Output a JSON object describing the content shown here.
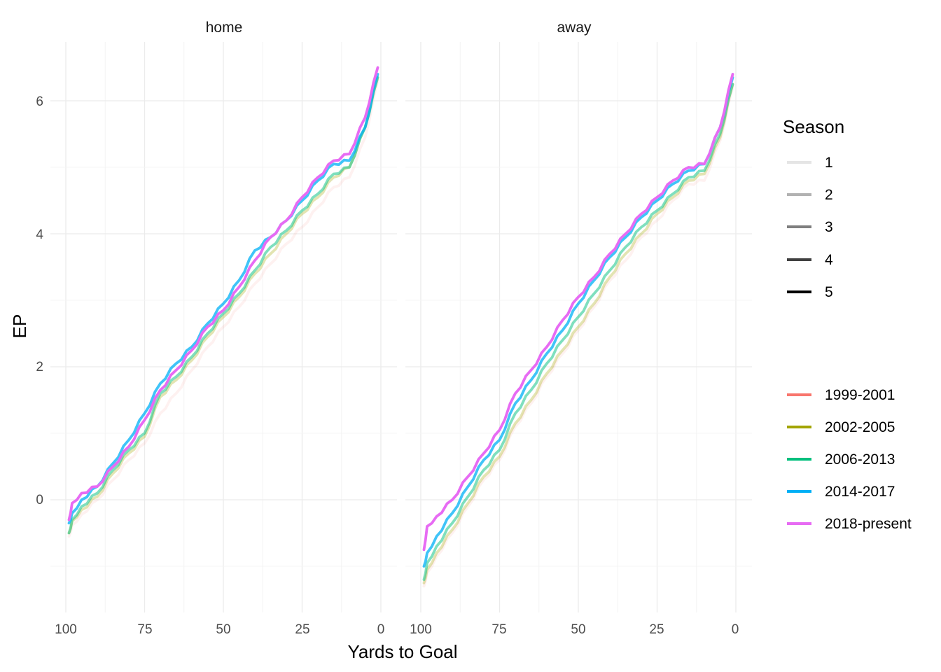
{
  "chart_data": {
    "type": "line",
    "facets": [
      "home",
      "away"
    ],
    "xlabel": "Yards to Goal",
    "ylabel": "EP",
    "xlim": [
      100,
      0
    ],
    "ylim": [
      -1.6,
      6.9
    ],
    "x_reversed": true,
    "x_ticks": [
      100,
      75,
      50,
      25,
      0
    ],
    "x_tick_labels": [
      "100",
      "75",
      "50",
      "25",
      "0"
    ],
    "y_ticks": [
      0,
      2,
      4,
      6
    ],
    "y_tick_labels": [
      "0",
      "2",
      "4",
      "6"
    ],
    "grid": true,
    "legend_position": "right",
    "legends": {
      "alpha": {
        "title": "Season",
        "items": [
          "1",
          "2",
          "3",
          "4",
          "5"
        ],
        "alphas": [
          0.1,
          0.3,
          0.5,
          0.75,
          1.0
        ]
      },
      "color": {
        "title": "",
        "items": [
          "1999-2001",
          "2002-2005",
          "2006-2013",
          "2014-2017",
          "2018-present"
        ]
      }
    },
    "colors": {
      "1999-2001": "#F8766D",
      "2002-2005": "#A3A500",
      "2006-2013": "#00BF7D",
      "2014-2017": "#00B0F6",
      "2018-present": "#E76BF3"
    },
    "series_alpha": {
      "1999-2001": 0.1,
      "2002-2005": 0.3,
      "2006-2013": 0.5,
      "2014-2017": 0.75,
      "2018-present": 1.0
    },
    "x": [
      99,
      98,
      95,
      90,
      85,
      80,
      75,
      70,
      65,
      60,
      55,
      50,
      45,
      40,
      35,
      30,
      25,
      20,
      15,
      10,
      5,
      1
    ],
    "panels": [
      {
        "facet": "home",
        "series": [
          {
            "name": "1999-2001",
            "values": [
              -0.55,
              -0.38,
              -0.22,
              0.0,
              0.3,
              0.6,
              0.85,
              1.3,
              1.6,
              1.95,
              2.3,
              2.6,
              2.9,
              3.25,
              3.55,
              3.85,
              4.1,
              4.4,
              4.7,
              4.85,
              5.45,
              6.3
            ]
          },
          {
            "name": "2002-2005",
            "values": [
              -0.5,
              -0.32,
              -0.15,
              0.05,
              0.4,
              0.7,
              0.95,
              1.55,
              1.8,
              2.1,
              2.45,
              2.75,
              3.05,
              3.4,
              3.7,
              4.0,
              4.3,
              4.55,
              4.85,
              5.0,
              5.6,
              6.35
            ]
          },
          {
            "name": "2006-2013",
            "values": [
              -0.5,
              -0.3,
              -0.1,
              0.1,
              0.45,
              0.75,
              1.0,
              1.6,
              1.85,
              2.15,
              2.5,
              2.8,
              3.1,
              3.45,
              3.8,
              4.05,
              4.35,
              4.6,
              4.9,
              5.0,
              5.6,
              6.35
            ]
          },
          {
            "name": "2014-2017",
            "values": [
              -0.35,
              -0.2,
              0.0,
              0.2,
              0.55,
              0.9,
              1.3,
              1.75,
              2.05,
              2.3,
              2.65,
              2.95,
              3.3,
              3.75,
              3.95,
              4.2,
              4.5,
              4.8,
              5.05,
              5.1,
              5.6,
              6.4
            ]
          },
          {
            "name": "2018-present",
            "values": [
              -0.3,
              -0.05,
              0.1,
              0.2,
              0.5,
              0.8,
              1.2,
              1.65,
              1.95,
              2.25,
              2.6,
              2.85,
              3.2,
              3.6,
              3.95,
              4.2,
              4.55,
              4.85,
              5.1,
              5.2,
              5.75,
              6.5
            ]
          }
        ]
      },
      {
        "facet": "away",
        "series": [
          {
            "name": "1999-2001",
            "values": [
              -1.3,
              -1.1,
              -0.85,
              -0.5,
              -0.1,
              0.3,
              0.6,
              1.1,
              1.45,
              1.85,
              2.2,
              2.55,
              2.9,
              3.3,
              3.6,
              3.95,
              4.2,
              4.5,
              4.75,
              4.8,
              5.4,
              6.2
            ]
          },
          {
            "name": "2002-2005",
            "values": [
              -1.25,
              -1.05,
              -0.8,
              -0.45,
              -0.05,
              0.35,
              0.65,
              1.15,
              1.5,
              1.9,
              2.25,
              2.6,
              2.95,
              3.35,
              3.7,
              4.0,
              4.3,
              4.55,
              4.8,
              4.9,
              5.45,
              6.25
            ]
          },
          {
            "name": "2006-2013",
            "values": [
              -1.2,
              -0.95,
              -0.7,
              -0.35,
              0.05,
              0.45,
              0.75,
              1.3,
              1.65,
              2.05,
              2.4,
              2.75,
              3.1,
              3.45,
              3.8,
              4.1,
              4.35,
              4.6,
              4.85,
              4.95,
              5.5,
              6.25
            ]
          },
          {
            "name": "2014-2017",
            "values": [
              -1.0,
              -0.8,
              -0.55,
              -0.2,
              0.2,
              0.6,
              0.9,
              1.45,
              1.8,
              2.2,
              2.55,
              2.95,
              3.3,
              3.65,
              3.95,
              4.25,
              4.5,
              4.75,
              4.95,
              5.05,
              5.6,
              6.35
            ]
          },
          {
            "name": "2018-present",
            "values": [
              -0.75,
              -0.4,
              -0.25,
              0.0,
              0.35,
              0.7,
              1.05,
              1.6,
              1.95,
              2.3,
              2.7,
              3.05,
              3.35,
              3.7,
              4.0,
              4.3,
              4.55,
              4.8,
              5.0,
              5.05,
              5.6,
              6.4
            ]
          }
        ]
      }
    ]
  }
}
